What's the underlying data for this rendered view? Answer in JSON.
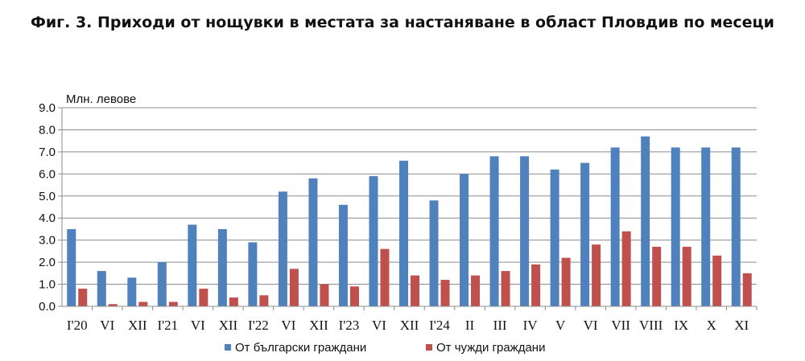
{
  "chart_data": {
    "type": "bar",
    "title": "Фиг. 3. Приходи от нощувки в местата за настаняване в област Пловдив по месеци",
    "ylabel": "Млн. левове",
    "xlabel": "",
    "ylim": [
      0,
      9
    ],
    "yticks": [
      "0.0",
      "1.0",
      "2.0",
      "3.0",
      "4.0",
      "5.0",
      "6.0",
      "7.0",
      "8.0",
      "9.0"
    ],
    "grid": true,
    "legend_position": "bottom",
    "categories": [
      "I'20",
      "VI",
      "XII",
      "I'21",
      "VI",
      "XII",
      "I'22",
      "VI",
      "XII",
      "I'23",
      "VI",
      "XII",
      "I'24",
      "II",
      "III",
      "IV",
      "V",
      "VI",
      "VII",
      "VIII",
      "IX",
      "X",
      "XI"
    ],
    "series": [
      {
        "name": "От български граждани",
        "color": "#4F81BD",
        "values": [
          3.5,
          1.6,
          1.3,
          2.0,
          3.7,
          3.5,
          2.9,
          5.2,
          5.8,
          4.6,
          5.9,
          6.6,
          4.8,
          6.0,
          6.8,
          6.8,
          6.2,
          6.5,
          7.2,
          7.7,
          7.2,
          7.2,
          7.2
        ]
      },
      {
        "name": "От чужди граждани",
        "color": "#C0504D",
        "values": [
          0.8,
          0.1,
          0.2,
          0.2,
          0.8,
          0.4,
          0.5,
          1.7,
          1.0,
          0.9,
          2.6,
          1.4,
          1.2,
          1.4,
          1.6,
          1.9,
          2.2,
          2.8,
          3.4,
          2.7,
          2.7,
          2.3,
          1.5
        ]
      }
    ]
  }
}
